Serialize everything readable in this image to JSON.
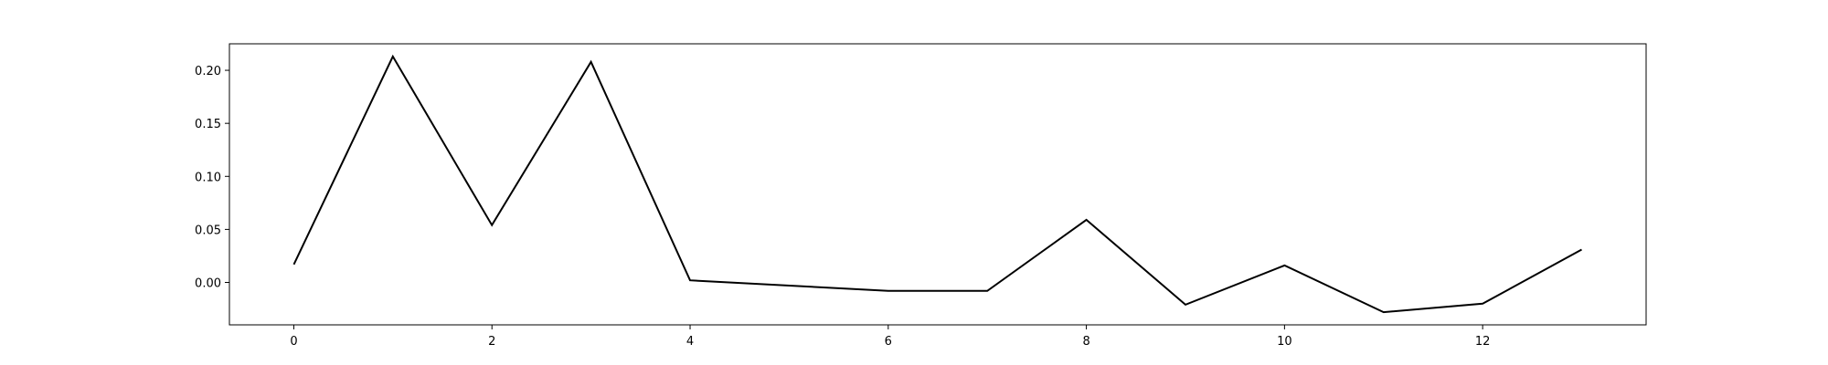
{
  "chart_data": {
    "type": "line",
    "title": "",
    "xlabel": "",
    "ylabel": "",
    "x": [
      0,
      1,
      2,
      3,
      4,
      6,
      7,
      8,
      9,
      10,
      11,
      12,
      13
    ],
    "series": [
      {
        "values": [
          0.017,
          0.213,
          0.054,
          0.208,
          0.002,
          -0.008,
          -0.008,
          0.059,
          -0.021,
          0.016,
          -0.028,
          -0.02,
          0.031
        ],
        "color": "#000000"
      }
    ],
    "xlim": [
      -0.65,
      13.65
    ],
    "ylim": [
      -0.04,
      0.225
    ],
    "xticks": [
      0,
      2,
      4,
      6,
      8,
      10,
      12
    ],
    "xtick_labels": [
      "0",
      "2",
      "4",
      "6",
      "8",
      "10",
      "12"
    ],
    "yticks": [
      0.0,
      0.05,
      0.1,
      0.15,
      0.2
    ],
    "ytick_labels": [
      "0.00",
      "0.05",
      "0.10",
      "0.15",
      "0.20"
    ],
    "grid": false,
    "legend": "none"
  }
}
